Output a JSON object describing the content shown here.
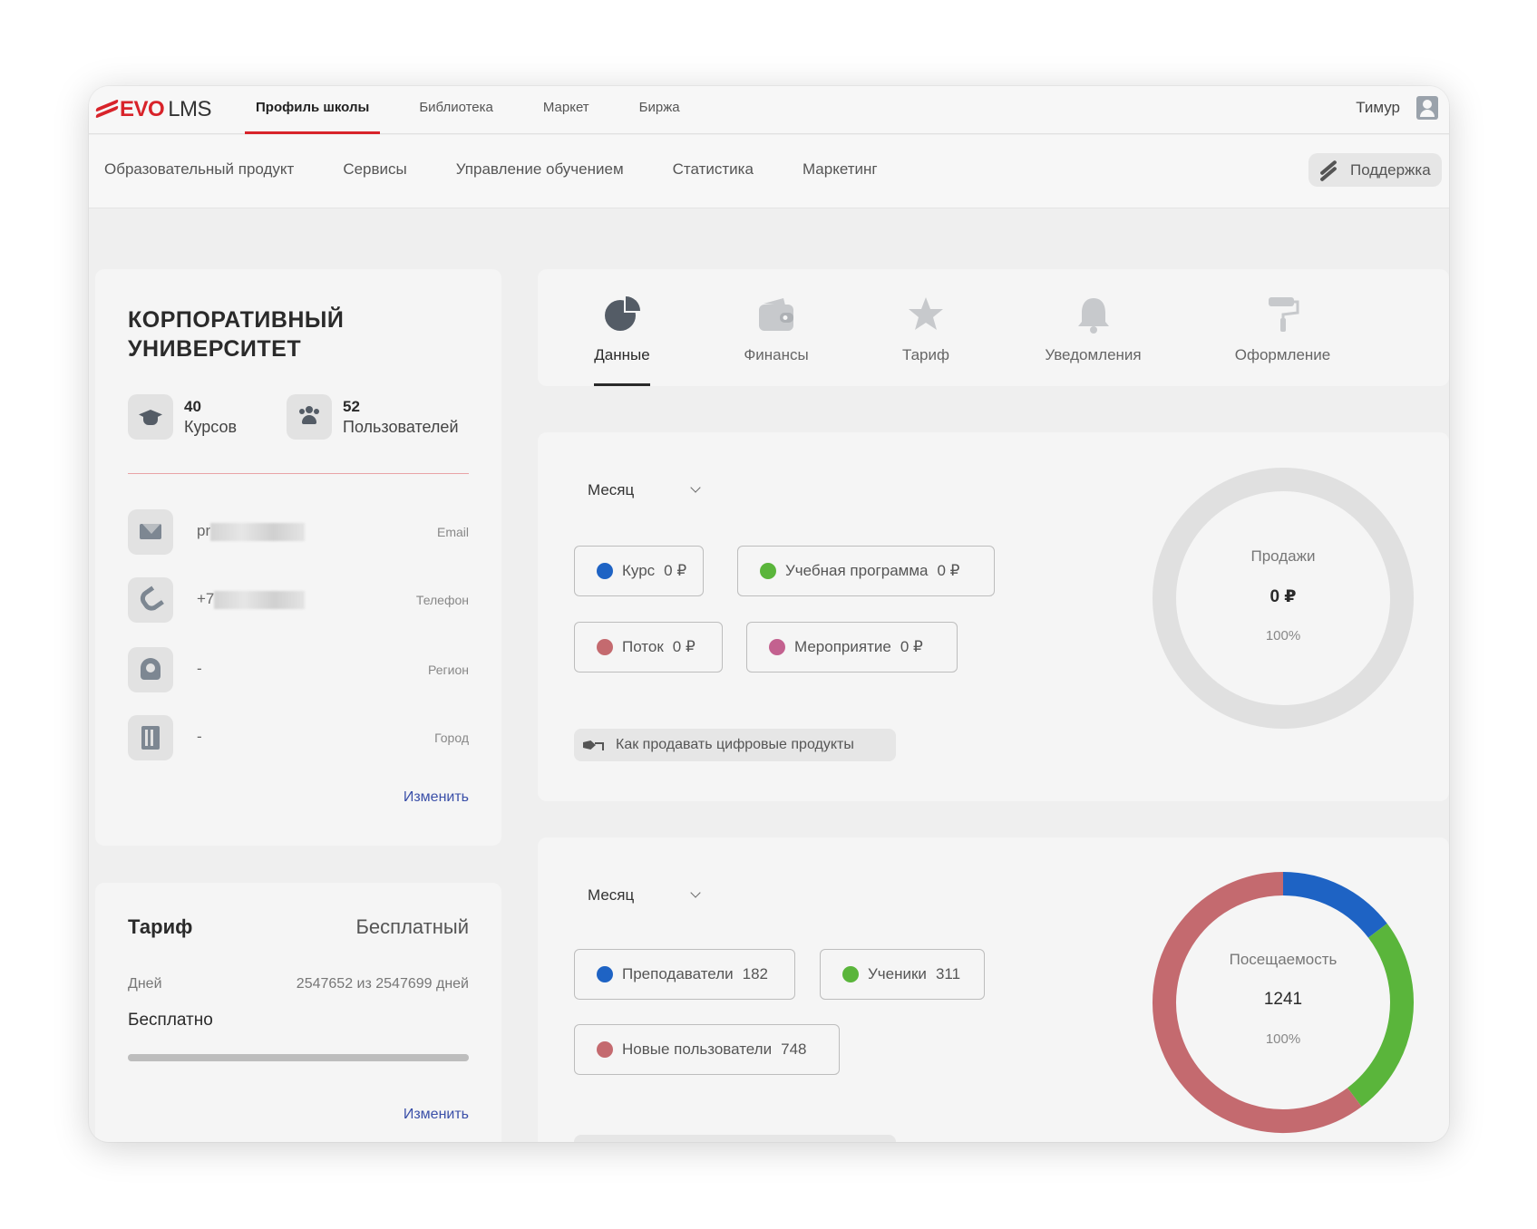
{
  "brand": {
    "evo": "EVO",
    "lms": "LMS"
  },
  "top_nav": [
    "Профиль школы",
    "Библиотека",
    "Маркет",
    "Биржа"
  ],
  "user": {
    "name": "Тимур",
    "icon": "user-icon"
  },
  "sub_nav": [
    "Образовательный продукт",
    "Сервисы",
    "Управление обучением",
    "Статистика",
    "Маркетинг"
  ],
  "support": {
    "label": "Поддержка",
    "icon": "support-icon"
  },
  "profile": {
    "title_line1": "КОРПОРАТИВНЫЙ",
    "title_line2": "УНИВЕРСИТЕТ",
    "courses": {
      "count": "40",
      "label": "Курсов"
    },
    "users": {
      "count": "52",
      "label": "Пользователей"
    },
    "contacts": [
      {
        "value": "pr",
        "label": "Email",
        "icon": "mail-icon"
      },
      {
        "value": "+7",
        "label": "Телефон",
        "icon": "phone-icon"
      },
      {
        "value": "-",
        "label": "Регион",
        "icon": "location-icon"
      },
      {
        "value": "-",
        "label": "Город",
        "icon": "building-icon"
      }
    ],
    "edit_label": "Изменить"
  },
  "tariff": {
    "title": "Тариф",
    "plan": "Бесплатный",
    "days_label": "Дней",
    "days_value": "2547652 из 2547699 дней",
    "price": "Бесплатно",
    "progress": 0.99998,
    "edit_label": "Изменить"
  },
  "tabs": [
    {
      "label": "Данные",
      "icon": "pie-chart-icon",
      "active": true
    },
    {
      "label": "Финансы",
      "icon": "wallet-icon",
      "active": false
    },
    {
      "label": "Тариф",
      "icon": "star-icon",
      "active": false
    },
    {
      "label": "Уведомления",
      "icon": "bell-icon",
      "active": false
    },
    {
      "label": "Оформление",
      "icon": "paint-roller-icon",
      "active": false
    }
  ],
  "sales": {
    "period": "Месяц",
    "items": [
      {
        "label": "Курс",
        "value": "0 ₽",
        "color": "#1e63c4"
      },
      {
        "label": "Учебная программа",
        "value": "0 ₽",
        "color": "#5ab53b"
      },
      {
        "label": "Поток",
        "value": "0 ₽",
        "color": "#c46a6f"
      },
      {
        "label": "Мероприятие",
        "value": "0 ₽",
        "color": "#c3618f"
      }
    ],
    "howto": "Как продавать цифровые продукты",
    "donut": {
      "title": "Продажи",
      "total": "0 ₽",
      "percent": "100%",
      "empty_color": "#e0e0e0"
    }
  },
  "visits": {
    "period": "Месяц",
    "items": [
      {
        "label": "Преподаватели",
        "value": "182",
        "color": "#1e63c4"
      },
      {
        "label": "Ученики",
        "value": "311",
        "color": "#5ab53b"
      },
      {
        "label": "Новые пользователи",
        "value": "748",
        "color": "#c46a6f"
      }
    ],
    "donut": {
      "title": "Посещаемость",
      "total": "1241",
      "percent": "100%"
    }
  }
}
